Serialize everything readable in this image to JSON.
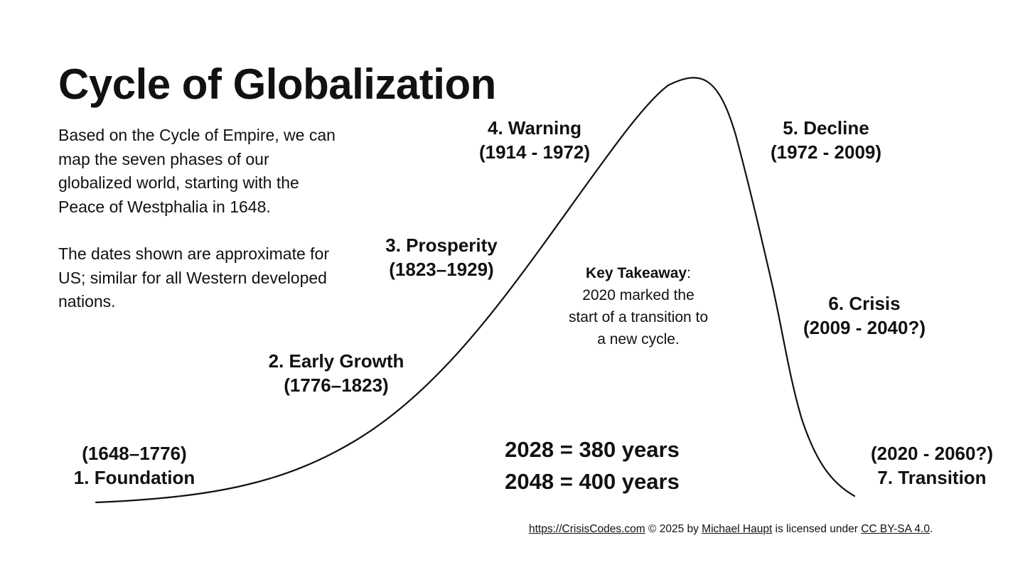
{
  "title": "Cycle of Globalization",
  "intro": {
    "paragraph1": "Based on the Cycle of Empire, we can map the seven phases of our globalized world, starting with the Peace of Westphalia in 1648.",
    "paragraph2": "The dates shown are approximate for US; similar for all Western developed nations."
  },
  "phases": [
    {
      "number": "1",
      "name": "1. Foundation",
      "dates": "(1648–1776)"
    },
    {
      "number": "2",
      "name": "2. Early Growth",
      "dates": "(1776–1823)"
    },
    {
      "number": "3",
      "name": "3. Prosperity",
      "dates": "(1823–1929)"
    },
    {
      "number": "4",
      "name": "4. Warning",
      "dates": "(1914 - 1972)"
    },
    {
      "number": "5",
      "name": "5. Decline",
      "dates": "(1972 - 2009)"
    },
    {
      "number": "6",
      "name": "6. Crisis",
      "dates": "(2009 - 2040?)"
    },
    {
      "number": "7",
      "name": "7. Transition",
      "dates": "(2020 - 2060?)"
    }
  ],
  "takeaway": {
    "label": "Key Takeaway",
    "separator": ":",
    "text": "2020 marked the start of a transition to a new cycle."
  },
  "years": {
    "line1": "2028 = 380 years",
    "line2": "2048 = 400 years"
  },
  "credit": {
    "site": "https://CrisisCodes.com",
    "copyright": " © 2025 by ",
    "author": "Michael Haupt",
    "licensed": " is licensed under ",
    "license": "CC BY-SA 4.0",
    "end": "."
  },
  "colors": {
    "curve": "#111111",
    "text": "#111111",
    "background": "#ffffff"
  }
}
